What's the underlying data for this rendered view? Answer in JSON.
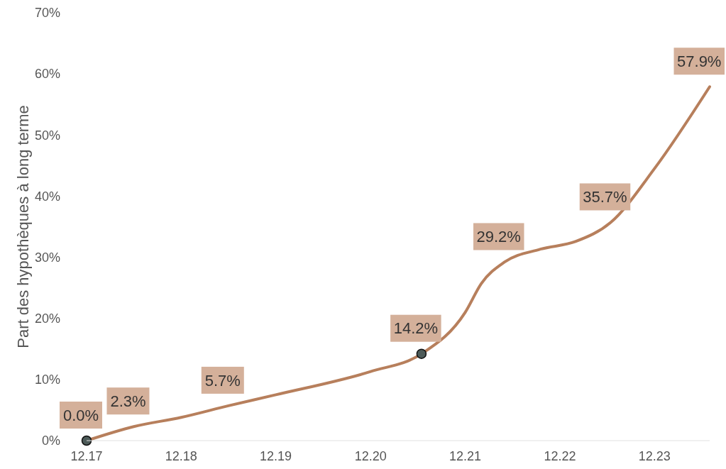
{
  "chart_data": {
    "type": "line",
    "ylabel": "Part des hypothèques à long terme",
    "xlim": [
      "2017-12",
      "2024-07"
    ],
    "xticks": [
      {
        "value": "2017-12",
        "label": "12.17"
      },
      {
        "value": "2018-12",
        "label": "12.18"
      },
      {
        "value": "2019-12",
        "label": "12.19"
      },
      {
        "value": "2020-12",
        "label": "12.20"
      },
      {
        "value": "2021-12",
        "label": "12.21"
      },
      {
        "value": "2022-12",
        "label": "12.22"
      },
      {
        "value": "2023-12",
        "label": "12.23"
      }
    ],
    "ylim": [
      0,
      70
    ],
    "yticks": [
      {
        "value": 0,
        "label": "0%"
      },
      {
        "value": 10,
        "label": "10%"
      },
      {
        "value": 20,
        "label": "20%"
      },
      {
        "value": 30,
        "label": "30%"
      },
      {
        "value": 40,
        "label": "40%"
      },
      {
        "value": 50,
        "label": "50%"
      },
      {
        "value": 60,
        "label": "60%"
      },
      {
        "value": 70,
        "label": "70%"
      }
    ],
    "grid": false,
    "series": [
      {
        "color": "#b77f5c",
        "marker": "none",
        "x": [
          "2017-12",
          "2018-06",
          "2018-12",
          "2019-06",
          "2019-12",
          "2020-12",
          "2021-06-15",
          "2021-12",
          "2022-02",
          "2022-05",
          "2022-09-15",
          "2023-02",
          "2023-06-15",
          "2023-12",
          "2024-07"
        ],
        "values": [
          0,
          2.3,
          3.8,
          5.7,
          7.5,
          11.3,
          14.2,
          21,
          25.7,
          29.2,
          31.3,
          32.6,
          35.7,
          44.5,
          57.9
        ],
        "value_labels": [
          "0.0%",
          "2.3%",
          null,
          "5.7%",
          null,
          null,
          "14.2%",
          null,
          null,
          "29.2%",
          null,
          null,
          "35.7%",
          null,
          "57.9%"
        ]
      },
      {
        "type": "scatter",
        "color": "#4d5b59",
        "marker": "circle",
        "x": [
          "2017-12",
          "2021-06-15"
        ],
        "values": [
          0,
          14.2
        ]
      }
    ]
  }
}
